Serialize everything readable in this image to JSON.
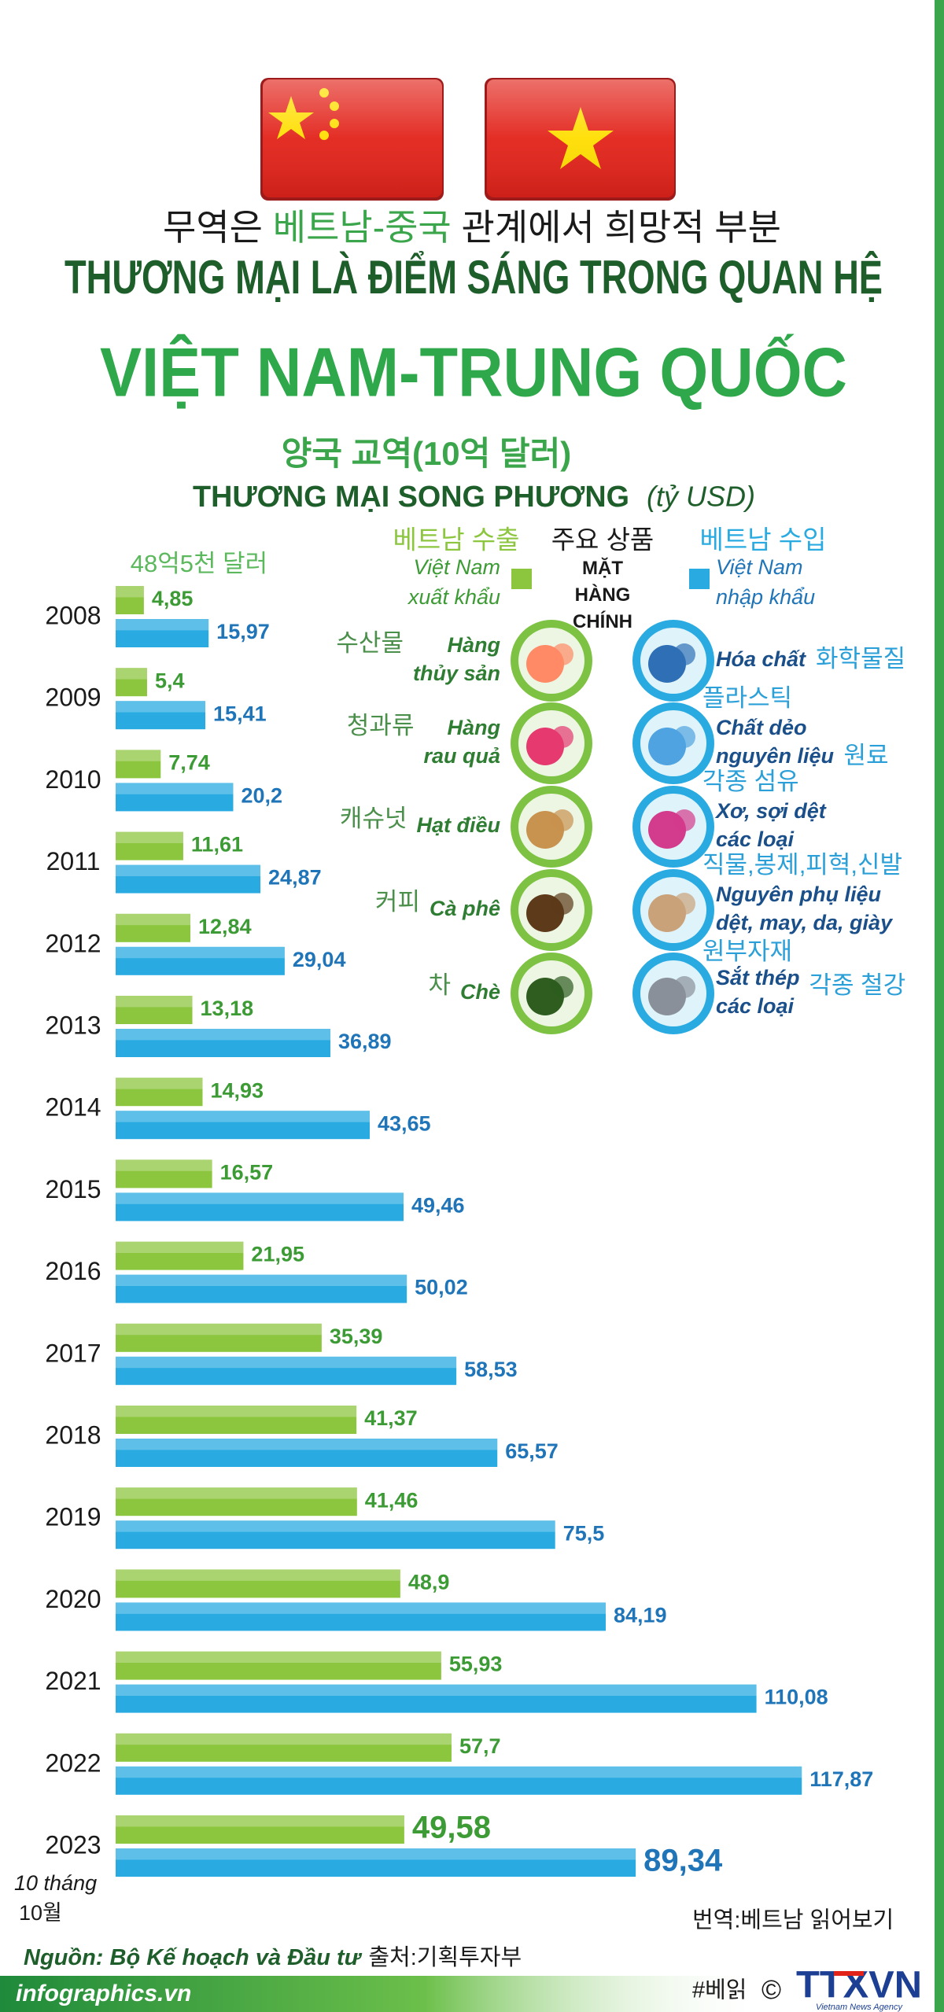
{
  "header": {
    "korean_line": {
      "before": "무역은 ",
      "highlight": "베트남-중국",
      "after": " 관계에서 희망적 부분"
    },
    "title_line1": "THƯƠNG MẠI LÀ ĐIỂM SÁNG TRONG QUAN HỆ",
    "title_line2": "VIỆT NAM-TRUNG QUỐC"
  },
  "chart_data": {
    "type": "bar",
    "orientation": "horizontal",
    "title": "양국 교역(10억 달러)",
    "subtitle": "THƯƠNG MẠI SONG PHƯƠNG",
    "unit": "(tỷ USD)",
    "annotation": "48억5천 달러",
    "categories": [
      "2008",
      "2009",
      "2010",
      "2011",
      "2012",
      "2013",
      "2014",
      "2015",
      "2016",
      "2017",
      "2018",
      "2019",
      "2020",
      "2021",
      "2022",
      "2023"
    ],
    "category_note": {
      "vi": "10 tháng",
      "ko": "10월"
    },
    "xlim": [
      0,
      120
    ],
    "series": [
      {
        "name": "Việt Nam xuất khẩu",
        "name_korean": "베트남 수출",
        "color": "#8cc63f",
        "label_color": "#3d9b35",
        "values": [
          4.85,
          5.4,
          7.74,
          11.61,
          12.84,
          13.18,
          14.93,
          16.57,
          21.95,
          35.39,
          41.37,
          41.46,
          48.9,
          55.93,
          57.7,
          49.58
        ],
        "value_labels": [
          "4,85",
          "5,4",
          "7,74",
          "11,61",
          "12,84",
          "13,18",
          "14,93",
          "16,57",
          "21,95",
          "35,39",
          "41,37",
          "41,46",
          "48,9",
          "55,93",
          "57,7",
          "49,58"
        ]
      },
      {
        "name": "Việt Nam nhập khẩu",
        "name_korean": "베트남 수입",
        "color": "#29abe2",
        "label_color": "#1f75b8",
        "values": [
          15.97,
          15.41,
          20.2,
          24.87,
          29.04,
          36.89,
          43.65,
          49.46,
          50.02,
          58.53,
          65.57,
          75.5,
          84.19,
          110.08,
          117.87,
          89.34
        ],
        "value_labels": [
          "15,97",
          "15,41",
          "20,2",
          "24,87",
          "29,04",
          "36,89",
          "43,65",
          "49,46",
          "50,02",
          "58,53",
          "65,57",
          "75,5",
          "84,19",
          "110,08",
          "117,87",
          "89,34"
        ]
      }
    ]
  },
  "products": {
    "title": "MẶT HÀNG CHÍNH",
    "title_korean": "주요 상품",
    "exports": [
      {
        "lines": [
          "Hàng",
          "thủy sản"
        ],
        "korean": [
          "수산물"
        ]
      },
      {
        "lines": [
          "Hàng",
          "rau quả"
        ],
        "korean": [
          "청과류"
        ]
      },
      {
        "lines": [
          "Hạt điều"
        ],
        "korean": [
          "캐슈넛"
        ]
      },
      {
        "lines": [
          "Cà phê"
        ],
        "korean": [
          "커피"
        ]
      },
      {
        "lines": [
          "Chè"
        ],
        "korean": [
          "차"
        ]
      }
    ],
    "imports": [
      {
        "lines": [
          "Hóa chất"
        ],
        "korean": [
          "화학물질"
        ]
      },
      {
        "lines": [
          "Chất dẻo",
          "nguyên liệu"
        ],
        "korean": [
          "플라스틱",
          "원료"
        ]
      },
      {
        "lines": [
          "Xơ, sợi dệt",
          "các loại"
        ],
        "korean": [
          "각종 섬유"
        ]
      },
      {
        "lines": [
          "Nguyên phụ liệu",
          "dệt, may, da, giày"
        ],
        "korean": [
          "직물,봉제,피혁,신발",
          "원부자재"
        ]
      },
      {
        "lines": [
          "Sắt thép",
          "các loại"
        ],
        "korean": [
          "각종 철강"
        ]
      }
    ]
  },
  "footer": {
    "translation": "번역:베트남 읽어보기",
    "source": "Nguồn: Bộ Kế hoạch và Đầu tư",
    "source_korean": "출처:기획투자부",
    "hashtag": "#베읽",
    "copyright": "©",
    "agency": "TTXVN",
    "agency_subtitle": "Vietnam News Agency",
    "website": "infographics.vn"
  }
}
